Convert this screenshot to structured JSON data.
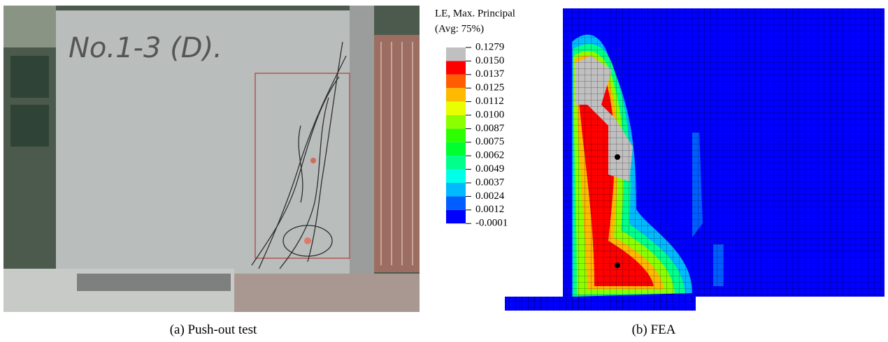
{
  "photo": {
    "handwriting": "No.1-3 (D)."
  },
  "legend": {
    "title": [
      "LE, Max. Principal",
      "(Avg: 75%)"
    ],
    "labels": [
      "0.1279",
      "0.0150",
      "0.0137",
      "0.0125",
      "0.0112",
      "0.0100",
      "0.0087",
      "0.0075",
      "0.0062",
      "0.0049",
      "0.0037",
      "0.0024",
      "0.0012",
      "-0.0001"
    ],
    "colors": [
      "#c0c0c0",
      "#ff0000",
      "#ff5d00",
      "#ffb900",
      "#e8ff00",
      "#8bff00",
      "#2eff00",
      "#00ff2e",
      "#00ff8b",
      "#00ffe8",
      "#00b9ff",
      "#005dff",
      "#0000ff"
    ]
  },
  "captions": [
    "(a) Push-out test",
    "(b) FEA"
  ]
}
